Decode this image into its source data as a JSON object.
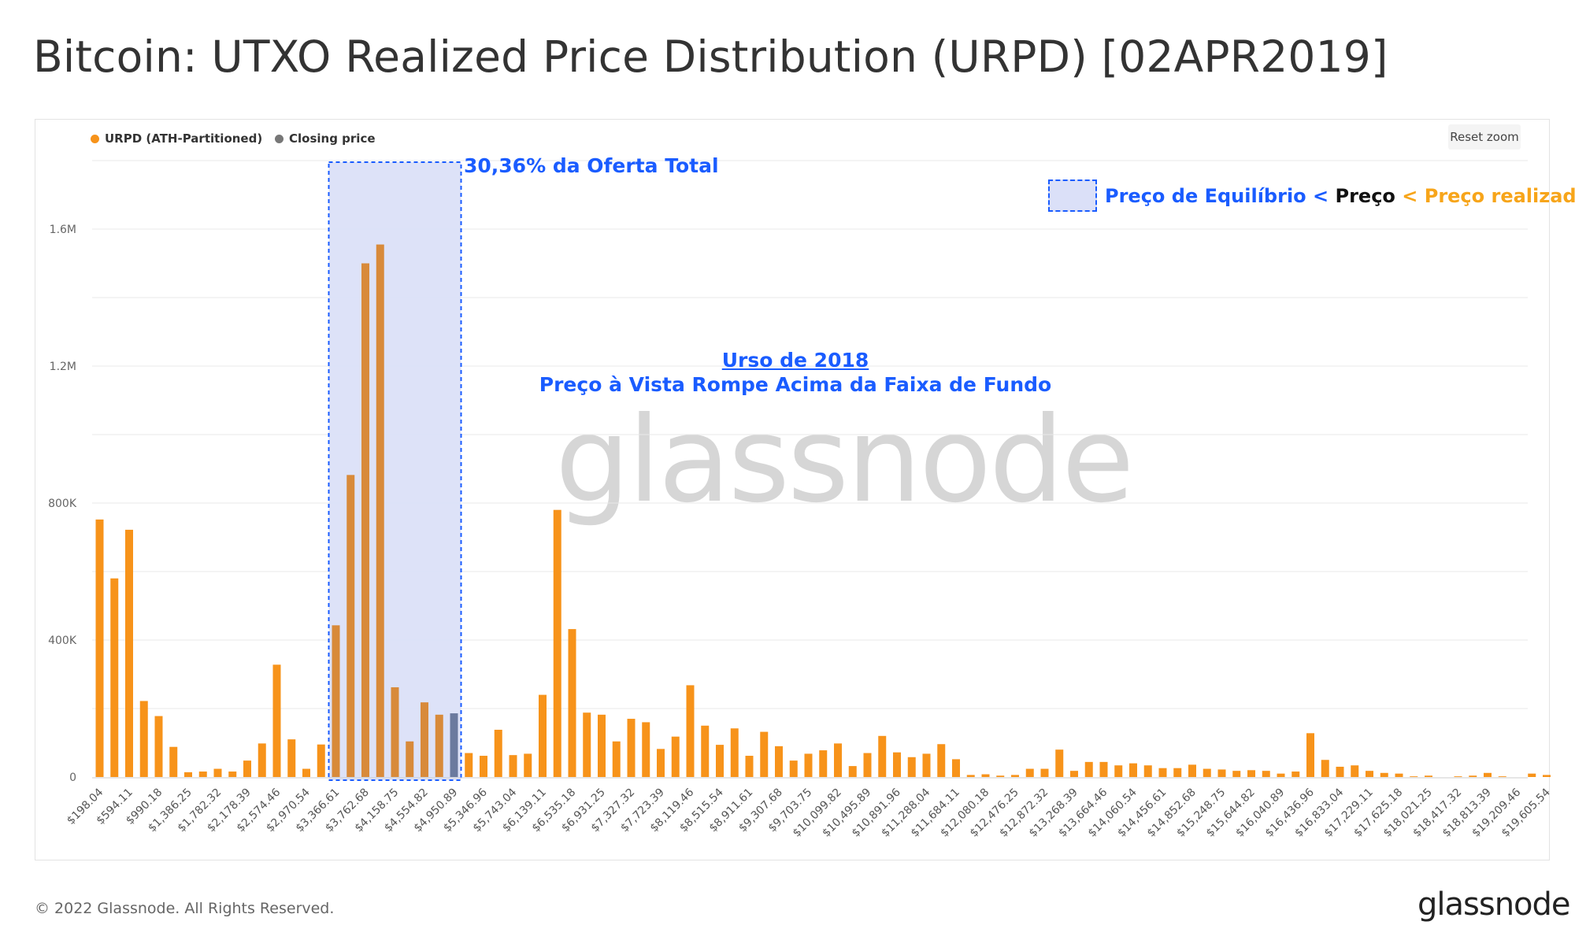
{
  "title": "Bitcoin: UTXO Realized Price Distribution (URPD) [02APR2019]",
  "reset_zoom_label": "Reset zoom",
  "legend": [
    {
      "label": "URPD (ATH-Partitioned)",
      "color": "#f7931a"
    },
    {
      "label": "Closing price",
      "color": "#777777"
    }
  ],
  "watermark": "glassnode",
  "annotations": {
    "box_label": "30,36% da Oferta Total",
    "bear_title": "Urso de 2018",
    "bear_subtitle": "Preço à Vista Rompe Acima da Faixa de Fundo",
    "key_part1": "Preço de Equilíbrio < ",
    "key_part2": "Preço",
    "key_part3": " < Preço realizado"
  },
  "footer": {
    "copyright": "© 2022 Glassnode. All Rights Reserved.",
    "logo": "glassnode"
  },
  "colors": {
    "bar": "#f7931a",
    "closing_bar": "#6b7a9e",
    "box_fill": "#dbe0f8",
    "box_border": "#1a5cff",
    "annot_blue": "#1a5cff",
    "annot_orange": "#f7a51a"
  },
  "chart_data": {
    "type": "bar",
    "y_ticks": [
      {
        "value": 0,
        "label": "0"
      },
      {
        "value": 400000,
        "label": "400K"
      },
      {
        "value": 800000,
        "label": "800K"
      },
      {
        "value": 1200000,
        "label": "1.2M"
      },
      {
        "value": 1600000,
        "label": "1.6M"
      }
    ],
    "ylim": [
      0,
      1800000
    ],
    "x_tick_labels": [
      "$198.04",
      "$594.11",
      "$990.18",
      "$1,386.25",
      "$1,782.32",
      "$2,178.39",
      "$2,574.46",
      "$2,970.54",
      "$3,366.61",
      "$3,762.68",
      "$4,158.75",
      "$4,554.82",
      "$4,950.89",
      "$5,346.96",
      "$5,743.04",
      "$6,139.11",
      "$6,535.18",
      "$6,931.25",
      "$7,327.32",
      "$7,723.39",
      "$8,119.46",
      "$8,515.54",
      "$8,911.61",
      "$9,307.68",
      "$9,703.75",
      "$10,099.82",
      "$10,495.89",
      "$10,891.96",
      "$11,288.04",
      "$11,684.11",
      "$12,080.18",
      "$12,476.25",
      "$12,872.32",
      "$13,268.39",
      "$13,664.46",
      "$14,060.54",
      "$14,456.61",
      "$14,852.68",
      "$15,248.75",
      "$15,644.82",
      "$16,040.89",
      "$16,436.96",
      "$16,833.04",
      "$17,229.11",
      "$17,625.18",
      "$18,021.25",
      "$18,417.32",
      "$18,813.39",
      "$19,209.46",
      "$19,605.54"
    ],
    "values": [
      752000,
      580000,
      722000,
      222000,
      178000,
      88000,
      14000,
      16000,
      24000,
      16000,
      48000,
      98000,
      328000,
      110000,
      24000,
      95000,
      443000,
      882000,
      1500000,
      1555000,
      262000,
      104000,
      218000,
      182000,
      186000,
      70000,
      62000,
      138000,
      64000,
      68000,
      240000,
      780000,
      432000,
      188000,
      182000,
      104000,
      170000,
      160000,
      82000,
      118000,
      268000,
      150000,
      94000,
      142000,
      62000,
      132000,
      90000,
      48000,
      68000,
      78000,
      98000,
      32000,
      70000,
      120000,
      72000,
      58000,
      68000,
      96000,
      52000,
      6000,
      8000,
      4000,
      6000,
      24000,
      24000,
      80000,
      18000,
      44000,
      44000,
      34000,
      40000,
      34000,
      26000,
      26000,
      36000,
      24000,
      22000,
      18000,
      20000,
      18000,
      10000,
      16000,
      128000,
      50000,
      30000,
      34000,
      18000,
      12000,
      10000,
      2000,
      4000,
      0,
      2000,
      4000,
      12000,
      2000,
      0,
      10000,
      6000
    ],
    "closing_price_index": 24,
    "highlight_range": [
      16,
      24
    ],
    "bin_width_usd": 198.04
  }
}
